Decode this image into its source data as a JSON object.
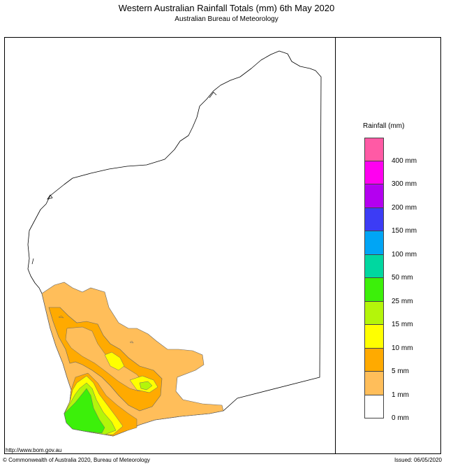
{
  "header": {
    "title": "Western Australian Rainfall Totals (mm) 6th May 2020",
    "subtitle": "Australian Bureau of Meteorology"
  },
  "legend": {
    "title": "Rainfall (mm)",
    "bins": [
      {
        "label": "",
        "color": "#ff5aa5"
      },
      {
        "label": "400 mm",
        "color": "#ff00f0"
      },
      {
        "label": "300 mm",
        "color": "#b400f0"
      },
      {
        "label": "200 mm",
        "color": "#3c3cf5"
      },
      {
        "label": "150 mm",
        "color": "#00a5f5"
      },
      {
        "label": "100 mm",
        "color": "#00d7a0"
      },
      {
        "label": "50 mm",
        "color": "#3cf00a"
      },
      {
        "label": "25 mm",
        "color": "#b4f50a"
      },
      {
        "label": "15 mm",
        "color": "#ffff00"
      },
      {
        "label": "10 mm",
        "color": "#ffaa00"
      },
      {
        "label": "5 mm",
        "color": "#ffbe5a"
      },
      {
        "label": "1 mm",
        "color": "#ffffff"
      },
      {
        "label": "0 mm",
        "color": ""
      }
    ]
  },
  "footer": {
    "url": "http://www.bom.gov.au",
    "copyright": "© Commonwealth of Australia 2020, Bureau of Meteorology",
    "issued": "Issued: 06/05/2020"
  }
}
